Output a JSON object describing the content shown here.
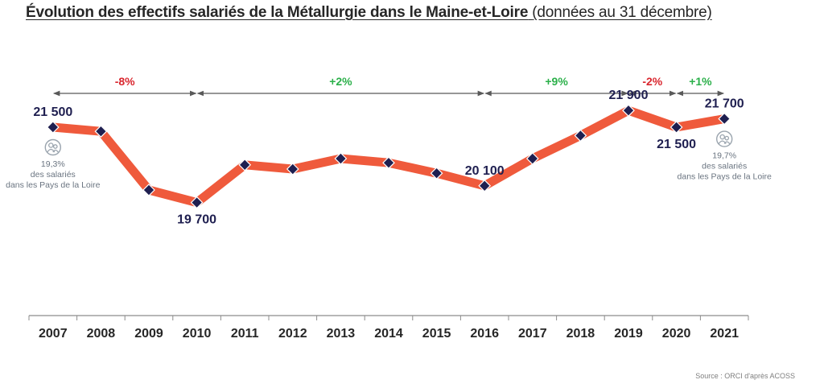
{
  "title": {
    "main": "Évolution des effectifs salariés de la Métallurgie dans le Maine-et-Loire",
    "sub": "(données au 31 décembre)"
  },
  "source": "Source : ORCI d'après ACOSS",
  "colors": {
    "line": "#ef5a3c",
    "marker": "#1f1f50",
    "negative": "#d9262e",
    "positive": "#2bb04a",
    "axis": "#8c8c8c",
    "arrow": "#595959"
  },
  "chart_data": {
    "type": "line",
    "categories": [
      "2007",
      "2008",
      "2009",
      "2010",
      "2011",
      "2012",
      "2013",
      "2014",
      "2015",
      "2016",
      "2017",
      "2018",
      "2019",
      "2020",
      "2021"
    ],
    "series": [
      {
        "values": [
          21500,
          21400,
          20000,
          19700,
          20600,
          20500,
          20750,
          20650,
          20400,
          20100,
          20750,
          21300,
          21900,
          21500,
          21700
        ]
      }
    ],
    "ylim": [
      17000,
      23000
    ],
    "grid": false,
    "data_labels": [
      {
        "category": "2007",
        "text": "21 500",
        "position": "above"
      },
      {
        "category": "2010",
        "text": "19 700",
        "position": "below"
      },
      {
        "category": "2016",
        "text": "20 100",
        "position": "above"
      },
      {
        "category": "2019",
        "text": "21 900",
        "position": "above"
      },
      {
        "category": "2020",
        "text": "21 500",
        "position": "below"
      },
      {
        "category": "2021",
        "text": "21 700",
        "position": "above"
      }
    ],
    "periods": [
      {
        "from": "2007",
        "to": "2010",
        "label": "-8%",
        "trend": "negative"
      },
      {
        "from": "2010",
        "to": "2016",
        "label": "+2%",
        "trend": "positive"
      },
      {
        "from": "2016",
        "to": "2019",
        "label": "+9%",
        "trend": "positive"
      },
      {
        "from": "2019",
        "to": "2020",
        "label": "-2%",
        "trend": "negative"
      },
      {
        "from": "2020",
        "to": "2021",
        "label": "+1%",
        "trend": "positive"
      }
    ],
    "annotations": [
      {
        "category": "2007",
        "lines": [
          "19,3%",
          "des salariés",
          "dans les Pays de la Loire"
        ],
        "icon": "people-icon"
      },
      {
        "category": "2021",
        "lines": [
          "19,7%",
          "des salariés",
          "dans les Pays de la Loire"
        ],
        "icon": "people-icon"
      }
    ]
  }
}
